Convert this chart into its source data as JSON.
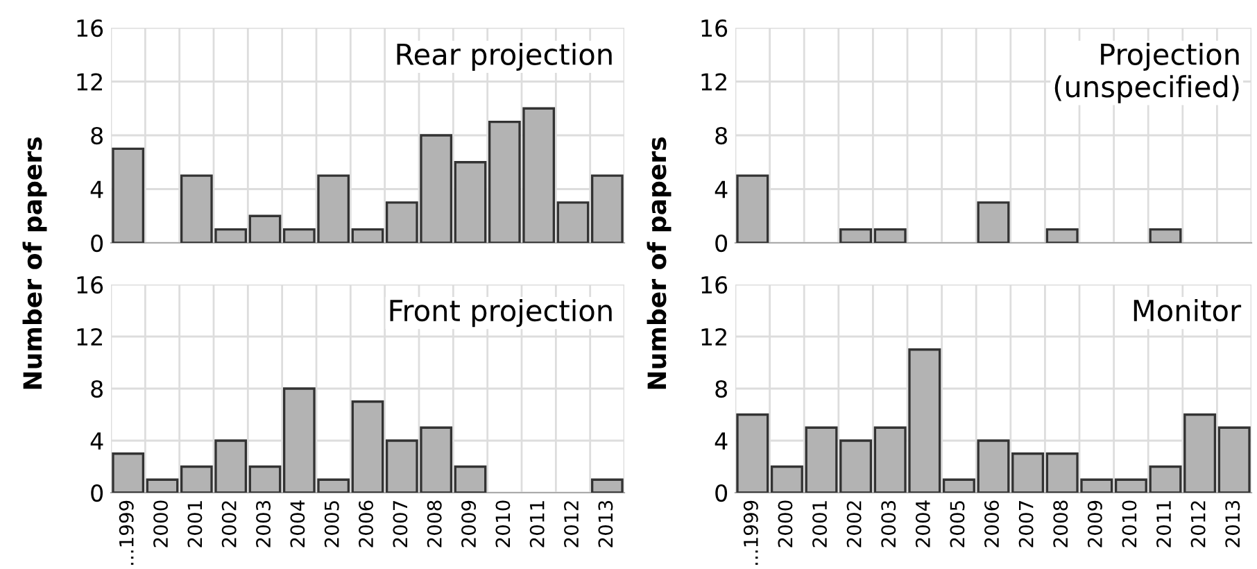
{
  "chart_data": [
    {
      "type": "bar",
      "title": "Rear projection",
      "categories": [
        "...1999",
        "2000",
        "2001",
        "2002",
        "2003",
        "2004",
        "2005",
        "2006",
        "2007",
        "2008",
        "2009",
        "2010",
        "2011",
        "2012",
        "2013"
      ],
      "values": [
        7,
        0,
        5,
        1,
        2,
        1,
        5,
        1,
        3,
        8,
        6,
        9,
        10,
        3,
        5
      ],
      "color": "#b3b3b3",
      "ylim": [
        0,
        16
      ],
      "yticks": [
        0,
        4,
        8,
        12,
        16
      ],
      "grid": true,
      "tick_labels": "y"
    },
    {
      "type": "bar",
      "title": "Projection\n(unspecified)",
      "categories": [
        "...1999",
        "2000",
        "2001",
        "2002",
        "2003",
        "2004",
        "2005",
        "2006",
        "2007",
        "2008",
        "2009",
        "2010",
        "2011",
        "2012",
        "2013"
      ],
      "values": [
        5,
        0,
        0,
        1,
        1,
        0,
        0,
        3,
        0,
        1,
        0,
        0,
        1,
        0,
        0
      ],
      "color": "#b3b3b3",
      "ylim": [
        0,
        16
      ],
      "yticks": [
        0,
        4,
        8,
        12,
        16
      ],
      "grid": true,
      "tick_labels": "y"
    },
    {
      "type": "bar",
      "title": "Front projection",
      "ylabel": "Number of papers",
      "categories": [
        "...1999",
        "2000",
        "2001",
        "2002",
        "2003",
        "2004",
        "2005",
        "2006",
        "2007",
        "2008",
        "2009",
        "2010",
        "2011",
        "2012",
        "2013"
      ],
      "values": [
        3,
        1,
        2,
        4,
        2,
        8,
        1,
        7,
        4,
        5,
        2,
        0,
        0,
        0,
        1
      ],
      "color": "#b3b3b3",
      "ylim": [
        0,
        16
      ],
      "yticks": [
        0,
        4,
        8,
        12,
        16
      ],
      "grid": true
    },
    {
      "type": "bar",
      "title": "Monitor",
      "ylabel": "Number of papers",
      "categories": [
        "...1999",
        "2000",
        "2001",
        "2002",
        "2003",
        "2004",
        "2005",
        "2006",
        "2007",
        "2008",
        "2009",
        "2010",
        "2011",
        "2012",
        "2013"
      ],
      "values": [
        6,
        2,
        5,
        4,
        5,
        11,
        1,
        4,
        3,
        3,
        1,
        1,
        2,
        6,
        5
      ],
      "color": "#b3b3b3",
      "ylim": [
        0,
        16
      ],
      "yticks": [
        0,
        4,
        8,
        12,
        16
      ],
      "grid": true
    }
  ]
}
